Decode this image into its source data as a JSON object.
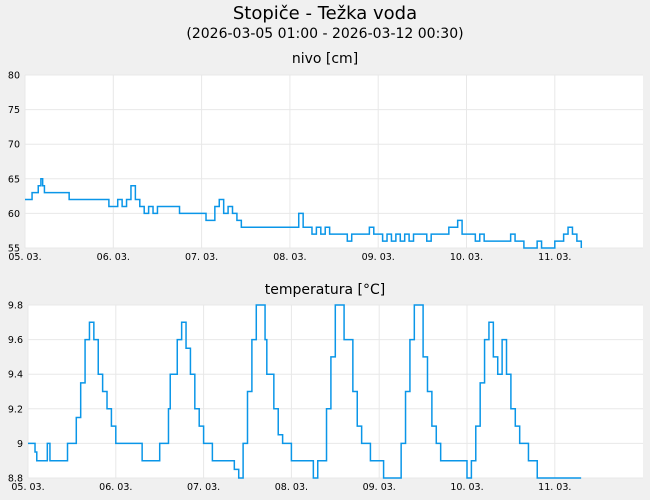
{
  "header": {
    "title": "Stopiče - Težka voda",
    "subtitle": "(2026-03-05 01:00 - 2026-03-12 00:30)"
  },
  "colors": {
    "line": "#0a96e8",
    "grid": "#e8e8e8",
    "plot_bg": "#ffffff",
    "page_bg": "#f0f0f0"
  },
  "chart_data": [
    {
      "type": "line",
      "title": "nivo [cm]",
      "xlabel": "",
      "ylabel": "nivo [cm]",
      "ylim": [
        55,
        80
      ],
      "yticks": [
        55,
        60,
        65,
        70,
        75,
        80
      ],
      "xtick_labels": [
        "05.03.",
        "06.03.",
        "07.03.",
        "08.03.",
        "09.03.",
        "10.03.",
        "11.03."
      ],
      "xlim_days": [
        0,
        7
      ],
      "grid": true,
      "series": [
        {
          "name": "nivo",
          "x_days": [
            0,
            0.05,
            0.08,
            0.12,
            0.15,
            0.18,
            0.2,
            0.22,
            0.25,
            0.3,
            0.45,
            0.5,
            0.9,
            0.95,
            1.0,
            1.05,
            1.1,
            1.15,
            1.2,
            1.25,
            1.3,
            1.35,
            1.4,
            1.45,
            1.5,
            1.55,
            1.6,
            1.7,
            1.75,
            1.8,
            1.9,
            1.95,
            2.0,
            2.05,
            2.1,
            2.15,
            2.2,
            2.25,
            2.3,
            2.35,
            2.4,
            2.45,
            2.5,
            2.55,
            3.0,
            3.05,
            3.1,
            3.15,
            3.2,
            3.25,
            3.3,
            3.35,
            3.4,
            3.45,
            3.5,
            3.6,
            3.65,
            3.7,
            3.75,
            3.8,
            3.9,
            3.95,
            4.0,
            4.05,
            4.1,
            4.15,
            4.2,
            4.25,
            4.3,
            4.35,
            4.4,
            4.5,
            4.55,
            4.6,
            4.7,
            4.75,
            4.8,
            4.9,
            4.95,
            5.0,
            5.05,
            5.1,
            5.15,
            5.2,
            5.3,
            5.35,
            5.4,
            5.5,
            5.55,
            5.6,
            5.65,
            5.7,
            5.8,
            5.85,
            5.9,
            6.0,
            6.05,
            6.1,
            6.15,
            6.2,
            6.25,
            6.3
          ],
          "values": [
            62,
            62,
            63,
            63,
            64,
            65,
            64,
            63,
            63,
            63,
            63,
            62,
            62,
            61,
            61,
            62,
            61,
            62,
            64,
            62,
            61,
            60,
            61,
            60,
            61,
            61,
            61,
            61,
            60,
            60,
            60,
            60,
            60,
            59,
            59,
            61,
            62,
            60,
            61,
            60,
            59,
            58,
            58,
            58,
            58,
            58,
            60,
            58,
            58,
            57,
            58,
            57,
            58,
            57,
            57,
            57,
            56,
            57,
            57,
            57,
            58,
            57,
            57,
            56,
            57,
            56,
            57,
            56,
            57,
            56,
            57,
            57,
            56,
            57,
            57,
            57,
            58,
            59,
            57,
            57,
            57,
            56,
            57,
            56,
            56,
            56,
            56,
            57,
            56,
            56,
            55,
            55,
            56,
            55,
            55,
            56,
            56,
            57,
            58,
            57,
            56,
            55
          ]
        }
      ]
    },
    {
      "type": "line",
      "title": "temperatura [°C]",
      "xlabel": "",
      "ylabel": "temperatura [°C]",
      "ylim": [
        8.8,
        9.8
      ],
      "yticks": [
        8.8,
        9,
        9.2,
        9.4,
        9.6,
        9.8
      ],
      "xtick_labels": [
        "05.03.",
        "06.03.",
        "07.03.",
        "08.03.",
        "09.03.",
        "10.03.",
        "11.03."
      ],
      "xlim_days": [
        0,
        7
      ],
      "grid": true,
      "series": [
        {
          "name": "temperatura",
          "x_days": [
            0,
            0.05,
            0.08,
            0.1,
            0.2,
            0.22,
            0.25,
            0.28,
            0.3,
            0.4,
            0.45,
            0.5,
            0.55,
            0.6,
            0.65,
            0.7,
            0.75,
            0.8,
            0.85,
            0.9,
            0.95,
            1.0,
            1.05,
            1.1,
            1.15,
            1.2,
            1.3,
            1.35,
            1.45,
            1.5,
            1.52,
            1.6,
            1.62,
            1.7,
            1.75,
            1.8,
            1.85,
            1.9,
            1.95,
            2.0,
            2.05,
            2.1,
            2.2,
            2.25,
            2.3,
            2.35,
            2.4,
            2.45,
            2.5,
            2.55,
            2.6,
            2.7,
            2.72,
            2.8,
            2.85,
            2.9,
            2.95,
            3.0,
            3.05,
            3.1,
            3.2,
            3.25,
            3.3,
            3.35,
            3.4,
            3.45,
            3.5,
            3.55,
            3.6,
            3.7,
            3.75,
            3.8,
            3.9,
            3.95,
            4.0,
            4.05,
            4.1,
            4.15,
            4.2,
            4.25,
            4.3,
            4.35,
            4.4,
            4.5,
            4.55,
            4.6,
            4.65,
            4.7,
            4.75,
            4.8,
            4.9,
            4.95,
            5.0,
            5.05,
            5.1,
            5.15,
            5.2,
            5.25,
            5.3,
            5.35,
            5.4,
            5.45,
            5.5,
            5.55,
            5.6,
            5.65,
            5.7,
            5.75,
            5.8,
            5.85,
            5.9,
            6.0,
            6.3
          ],
          "values": [
            9.0,
            9.0,
            8.95,
            8.9,
            8.9,
            9.0,
            8.9,
            8.9,
            8.9,
            8.9,
            9.0,
            9.0,
            9.15,
            9.35,
            9.6,
            9.7,
            9.6,
            9.4,
            9.3,
            9.2,
            9.1,
            9.0,
            9.0,
            9.0,
            9.0,
            9.0,
            8.9,
            8.9,
            8.9,
            9.0,
            9.0,
            9.2,
            9.4,
            9.6,
            9.7,
            9.55,
            9.4,
            9.2,
            9.1,
            9.0,
            9.0,
            8.9,
            8.9,
            8.9,
            8.9,
            8.85,
            8.8,
            9.0,
            9.3,
            9.6,
            9.8,
            9.6,
            9.4,
            9.2,
            9.05,
            9.0,
            9.0,
            8.9,
            8.9,
            8.9,
            8.9,
            8.8,
            8.9,
            8.9,
            9.2,
            9.5,
            9.8,
            9.8,
            9.6,
            9.3,
            9.1,
            9.0,
            8.9,
            8.9,
            8.9,
            8.8,
            8.8,
            8.8,
            8.8,
            9.0,
            9.3,
            9.6,
            9.8,
            9.5,
            9.3,
            9.1,
            9.0,
            8.9,
            8.9,
            8.9,
            8.9,
            8.9,
            8.8,
            8.9,
            9.1,
            9.35,
            9.6,
            9.7,
            9.5,
            9.4,
            9.6,
            9.4,
            9.2,
            9.1,
            9.0,
            9.0,
            8.9,
            8.9,
            8.8,
            8.8,
            8.8,
            8.8,
            8.8
          ]
        }
      ]
    }
  ]
}
